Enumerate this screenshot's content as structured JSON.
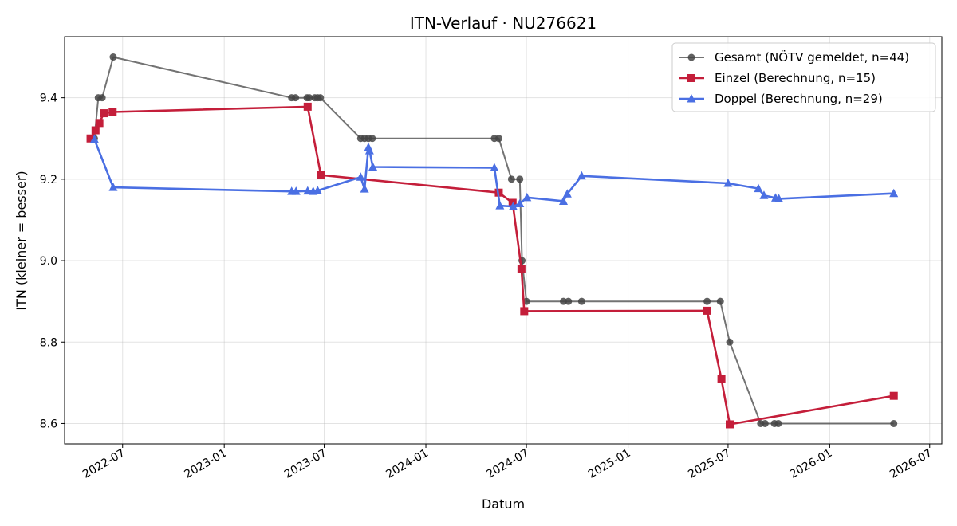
{
  "chart_data": {
    "type": "line",
    "title": "ITN-Verlauf · NU276621",
    "xlabel": "Datum",
    "ylabel": "ITN  (kleiner = besser)",
    "xlim": [
      "2022-03-18",
      "2026-07-23"
    ],
    "ylim": [
      8.55,
      9.55
    ],
    "x_ticks": [
      "2022-07",
      "2023-01",
      "2023-07",
      "2024-01",
      "2024-07",
      "2025-01",
      "2025-07",
      "2026-01",
      "2026-07"
    ],
    "y_ticks": [
      "8.6",
      "8.8",
      "9.0",
      "9.2",
      "9.4"
    ],
    "grid": true,
    "legend_position": "top-right",
    "series": [
      {
        "name": "Gesamt (NÖTV gemeldet, n=44)",
        "color": "#444444",
        "marker": "circle",
        "points": [
          [
            "2022-05-04",
            9.3
          ],
          [
            "2022-05-11",
            9.3
          ],
          [
            "2022-05-18",
            9.4
          ],
          [
            "2022-05-25",
            9.4
          ],
          [
            "2022-06-14",
            9.5
          ],
          [
            "2023-05-03",
            9.4
          ],
          [
            "2023-05-10",
            9.4
          ],
          [
            "2023-05-31",
            9.4
          ],
          [
            "2023-06-04",
            9.4
          ],
          [
            "2023-06-14",
            9.4
          ],
          [
            "2023-06-19",
            9.4
          ],
          [
            "2023-06-24",
            9.4
          ],
          [
            "2023-09-05",
            9.3
          ],
          [
            "2023-09-12",
            9.3
          ],
          [
            "2023-09-19",
            9.3
          ],
          [
            "2023-09-26",
            9.3
          ],
          [
            "2024-05-04",
            9.3
          ],
          [
            "2024-05-12",
            9.3
          ],
          [
            "2024-06-04",
            9.2
          ],
          [
            "2024-06-19",
            9.2
          ],
          [
            "2024-06-23",
            9.0
          ],
          [
            "2024-07-01",
            8.9
          ],
          [
            "2024-09-06",
            8.9
          ],
          [
            "2024-09-15",
            8.9
          ],
          [
            "2024-10-09",
            8.9
          ],
          [
            "2025-05-24",
            8.9
          ],
          [
            "2025-06-17",
            8.9
          ],
          [
            "2025-07-04",
            8.8
          ],
          [
            "2025-08-29",
            8.6
          ],
          [
            "2025-09-06",
            8.6
          ],
          [
            "2025-09-23",
            8.6
          ],
          [
            "2025-09-30",
            8.6
          ],
          [
            "2026-04-27",
            8.6
          ]
        ]
      },
      {
        "name": "Einzel (Berechnung, n=15)",
        "color": "#c41e3a",
        "marker": "square",
        "points": [
          [
            "2022-05-04",
            9.3
          ],
          [
            "2022-05-13",
            9.32
          ],
          [
            "2022-05-20",
            9.338
          ],
          [
            "2022-05-28",
            9.362
          ],
          [
            "2022-06-13",
            9.365
          ],
          [
            "2023-06-01",
            9.378
          ],
          [
            "2023-06-25",
            9.21
          ],
          [
            "2024-05-12",
            9.167
          ],
          [
            "2024-06-06",
            9.142
          ],
          [
            "2024-06-22",
            8.98
          ],
          [
            "2024-06-27",
            8.876
          ],
          [
            "2025-05-24",
            8.877
          ],
          [
            "2025-06-19",
            8.709
          ],
          [
            "2025-07-04",
            8.598
          ],
          [
            "2026-04-27",
            8.668
          ]
        ]
      },
      {
        "name": "Doppel (Berechnung, n=29)",
        "color": "#4a6fe3",
        "marker": "triangle",
        "points": [
          [
            "2022-05-11",
            9.298
          ],
          [
            "2022-06-14",
            9.18
          ],
          [
            "2023-05-03",
            9.17
          ],
          [
            "2023-05-11",
            9.17
          ],
          [
            "2023-06-01",
            9.171
          ],
          [
            "2023-06-11",
            9.17
          ],
          [
            "2023-06-19",
            9.172
          ],
          [
            "2023-09-05",
            9.205
          ],
          [
            "2023-09-12",
            9.176
          ],
          [
            "2023-09-19",
            9.278
          ],
          [
            "2023-09-21",
            9.27
          ],
          [
            "2023-09-27",
            9.23
          ],
          [
            "2024-05-04",
            9.228
          ],
          [
            "2024-05-14",
            9.135
          ],
          [
            "2024-06-07",
            9.133
          ],
          [
            "2024-06-19",
            9.14
          ],
          [
            "2024-07-02",
            9.155
          ],
          [
            "2024-09-06",
            9.146
          ],
          [
            "2024-09-13",
            9.164
          ],
          [
            "2024-10-09",
            9.208
          ],
          [
            "2025-07-01",
            9.19
          ],
          [
            "2025-08-25",
            9.177
          ],
          [
            "2025-09-04",
            9.16
          ],
          [
            "2025-09-25",
            9.154
          ],
          [
            "2025-10-01",
            9.152
          ],
          [
            "2026-04-27",
            9.165
          ]
        ]
      }
    ]
  }
}
